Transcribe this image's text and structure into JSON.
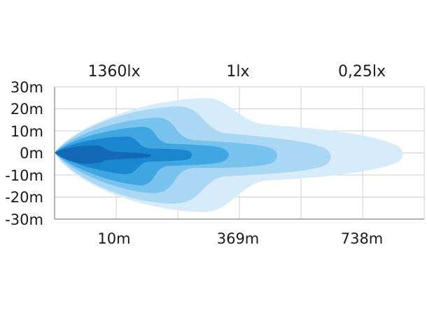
{
  "chart_data": {
    "type": "area",
    "title": "",
    "xlabel": "",
    "ylabel": "",
    "ylim": [
      -30,
      30
    ],
    "grid": true,
    "y_ticks": [
      "30m",
      "20m",
      "10m",
      "0m",
      "-10m",
      "-20m",
      "-30m"
    ],
    "x_ticks": [
      "10m",
      "369m",
      "738m"
    ],
    "lux_labels": [
      "1360lx",
      "1lx",
      "0,25lx"
    ],
    "colors": {
      "grid": "#cfcfcf",
      "axis": "#9a9a9a",
      "levels": [
        "#d6ecfa",
        "#a9d7f4",
        "#78c3ee",
        "#3fa6e2",
        "#1a86d0",
        "#1469b6"
      ]
    }
  }
}
